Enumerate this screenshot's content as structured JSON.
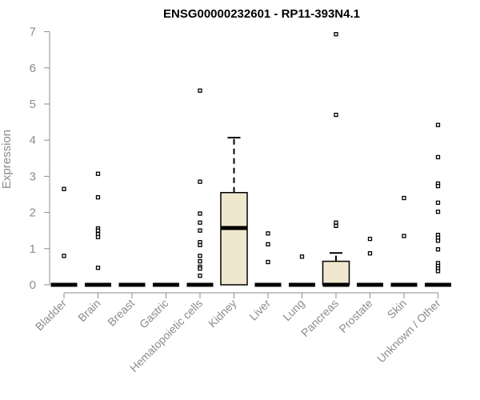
{
  "chart_data": {
    "type": "box",
    "title": "ENSG00000232601 - RP11-393N4.1",
    "ylabel": "Expression",
    "ylim": [
      0,
      7
    ],
    "yticks": [
      0,
      1,
      2,
      3,
      4,
      5,
      6,
      7
    ],
    "box_color": "#efe8cf",
    "categories": [
      "Bladder",
      "Brain",
      "Breast",
      "Gastric",
      "Hematopoietic cells",
      "Kidney",
      "Liver",
      "Lung",
      "Pancreas",
      "Prostate",
      "Skin",
      "Unknown / Other"
    ],
    "boxes": [
      {
        "q1": 0,
        "median": 0,
        "q3": 0,
        "whisker_low": 0,
        "whisker_high": 0,
        "outliers": [
          2.65,
          0.8
        ]
      },
      {
        "q1": 0,
        "median": 0,
        "q3": 0,
        "whisker_low": 0,
        "whisker_high": 0,
        "outliers": [
          3.07,
          2.42,
          1.56,
          1.5,
          1.4,
          1.32,
          0.47
        ]
      },
      {
        "q1": 0,
        "median": 0,
        "q3": 0,
        "whisker_low": 0,
        "whisker_high": 0,
        "outliers": []
      },
      {
        "q1": 0,
        "median": 0,
        "q3": 0,
        "whisker_low": 0,
        "whisker_high": 0,
        "outliers": []
      },
      {
        "q1": 0,
        "median": 0,
        "q3": 0,
        "whisker_low": 0,
        "whisker_high": 0,
        "outliers": [
          5.37,
          2.85,
          1.97,
          1.72,
          1.5,
          1.18,
          1.1,
          0.8,
          0.65,
          0.5,
          0.45,
          0.25
        ]
      },
      {
        "q1": 0,
        "median": 1.57,
        "q3": 2.55,
        "whisker_low": 0,
        "whisker_high": 4.07,
        "outliers": []
      },
      {
        "q1": 0,
        "median": 0,
        "q3": 0,
        "whisker_low": 0,
        "whisker_high": 0,
        "outliers": [
          1.42,
          1.12,
          0.63
        ]
      },
      {
        "q1": 0,
        "median": 0,
        "q3": 0,
        "whisker_low": 0,
        "whisker_high": 0,
        "outliers": [
          0.78
        ]
      },
      {
        "q1": 0,
        "median": 0,
        "q3": 0.65,
        "whisker_low": 0,
        "whisker_high": 0.88,
        "outliers": [
          6.93,
          4.7,
          1.72,
          1.63
        ]
      },
      {
        "q1": 0,
        "median": 0,
        "q3": 0,
        "whisker_low": 0,
        "whisker_high": 0,
        "outliers": [
          1.27,
          0.87
        ]
      },
      {
        "q1": 0,
        "median": 0,
        "q3": 0,
        "whisker_low": 0,
        "whisker_high": 0,
        "outliers": [
          2.4,
          1.35
        ]
      },
      {
        "q1": 0,
        "median": 0,
        "q3": 0,
        "whisker_low": 0,
        "whisker_high": 0,
        "outliers": [
          4.42,
          3.53,
          2.8,
          2.73,
          2.27,
          2.02,
          1.38,
          1.3,
          1.22,
          0.98,
          0.6,
          0.52,
          0.45,
          0.38
        ]
      }
    ]
  }
}
